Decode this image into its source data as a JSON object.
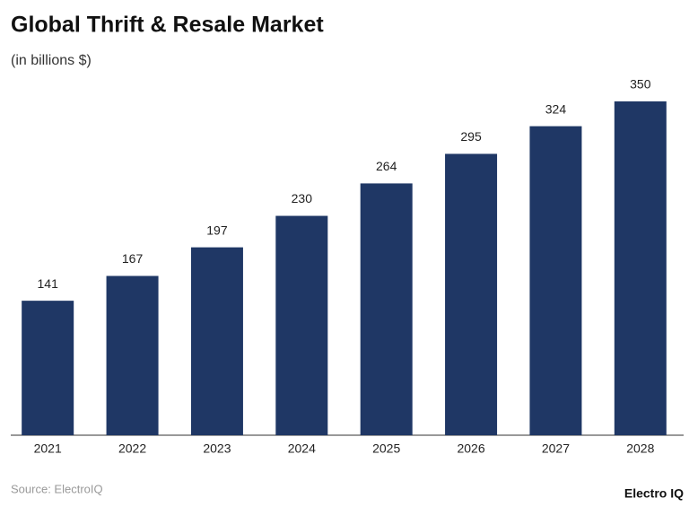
{
  "chart_data": {
    "type": "bar",
    "title": "Global Thrift & Resale Market",
    "subtitle": "(in billions $)",
    "categories": [
      "2021",
      "2022",
      "2023",
      "2024",
      "2025",
      "2026",
      "2027",
      "2028"
    ],
    "values": [
      141,
      167,
      197,
      230,
      264,
      295,
      324,
      350
    ],
    "color": "#1f3765",
    "source": "Source: ElectroIQ",
    "brand": "Electro IQ"
  }
}
